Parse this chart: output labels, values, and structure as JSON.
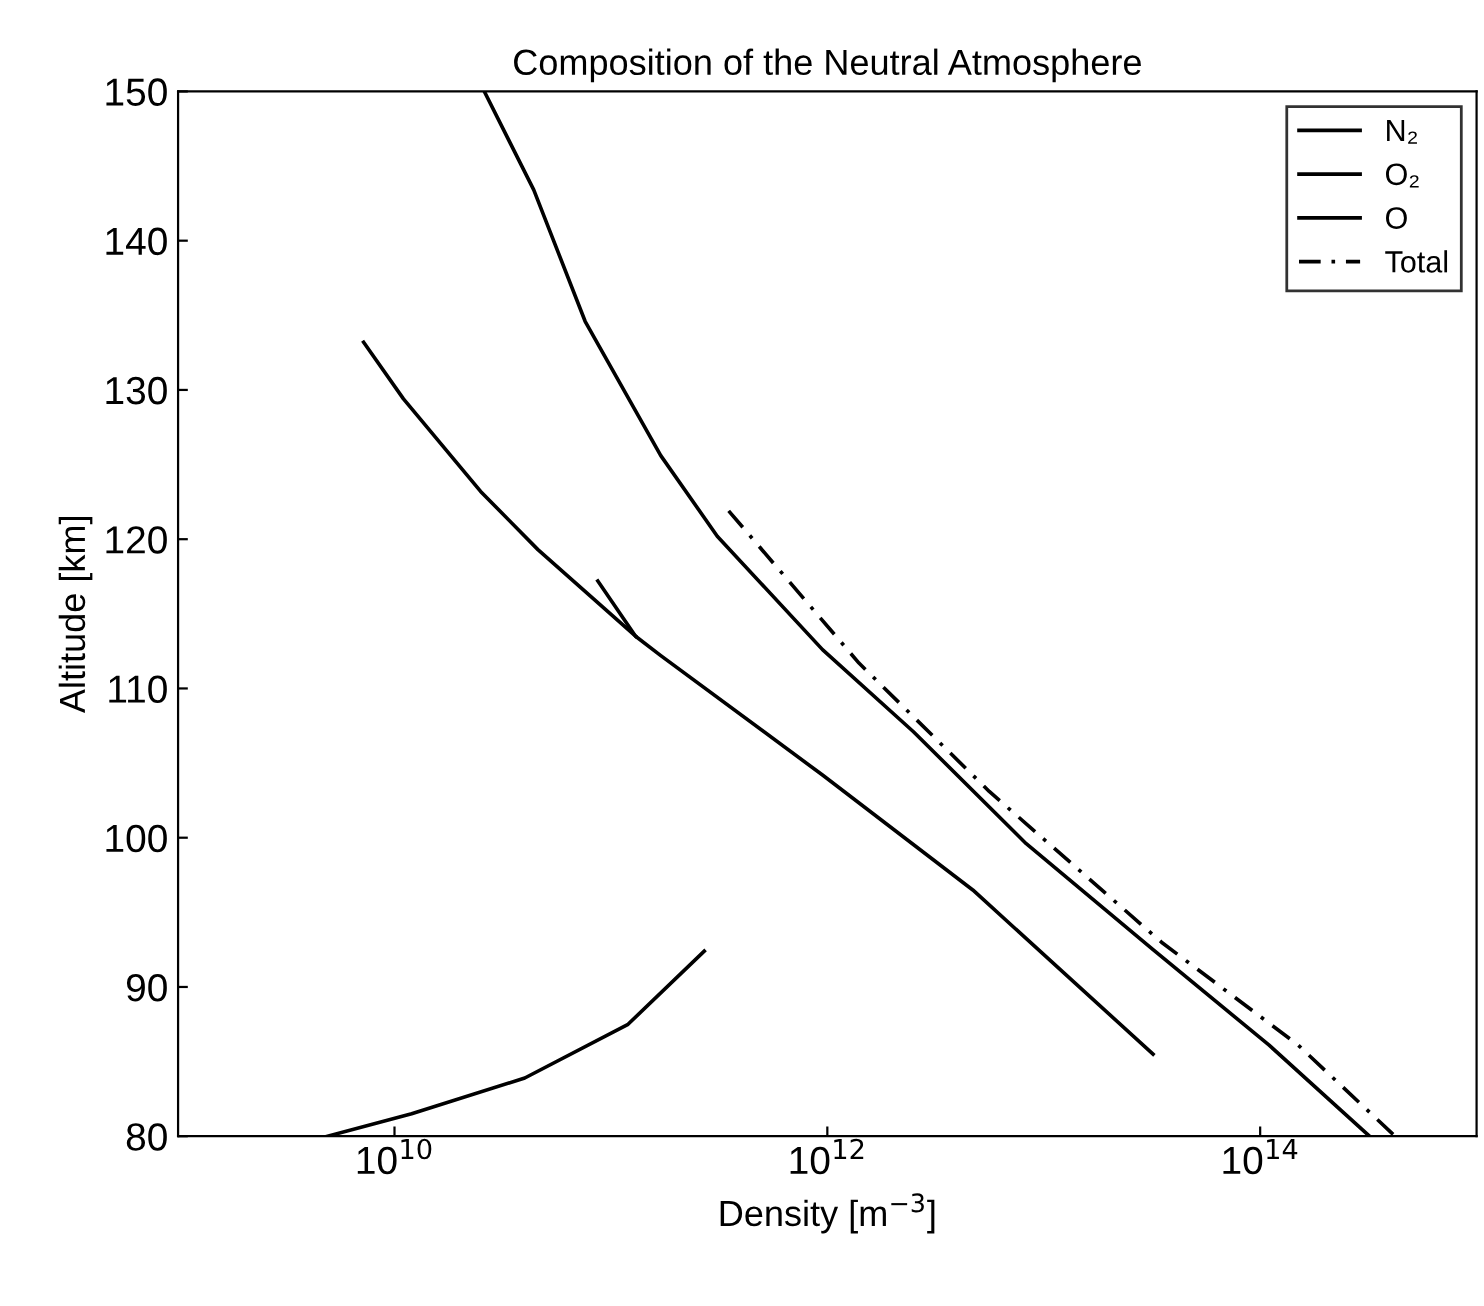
{
  "chart_data": {
    "type": "line",
    "title": "Composition of the Neutral Atmosphere",
    "xlabel": "Density [m$^{−3}$]",
    "ylabel": "Altitude [km]",
    "log": "x",
    "xlim": [
      1000000000.0,
      1000000000000000.0
    ],
    "xticks": [
      {
        "value": 10000000000.0,
        "label": "10$^{10}$"
      },
      {
        "value": 1000000000000.0,
        "label": "10$^{12}$"
      },
      {
        "value": 100000000000000.0,
        "label": "10$^{14}$"
      }
    ],
    "ylim": [
      80,
      150
    ],
    "yticks": [
      80,
      90,
      100,
      110,
      120,
      130,
      140,
      150
    ],
    "grid": false,
    "legend": "top right",
    "marker": "none",
    "series": [
      {
        "name": "N₂",
        "color": "#000000",
        "line_style": "solid",
        "x": [
          26000000000.0,
          44000000000.0,
          76000000000.0,
          170000000000.0,
          310000000000.0,
          950000000000.0,
          2500000000000.0,
          8300000000000.0,
          32000000000000.0,
          110000000000000.0,
          320000000000000.0
        ],
        "values": [
          150,
          143.4,
          134.6,
          125.6,
          120.2,
          112.6,
          107.1,
          99.6,
          92.5,
          86.1,
          80
        ]
      },
      {
        "name": "O₂",
        "color": "#000000",
        "line_style": "solid",
        "x": [
          87000000000.0,
          130000000000.0,
          170000000000.0,
          950000000000.0,
          4700000000000.0,
          32000000000000.0
        ],
        "values": [
          117.2,
          113.5,
          112.2,
          104.2,
          96.5,
          85.5
        ]
      },
      {
        "name": "O",
        "color": "#000000",
        "line_style": "solid",
        "x": [
          7200000000.0,
          11000000000.0,
          25000000000.0,
          46000000000.0,
          130000000000.0,
          null,
          270000000000.0,
          120000000000.0,
          40000000000.0,
          12000000000.0,
          4900000000.0
        ],
        "values": [
          133.2,
          129.4,
          123.2,
          119.3,
          113.5,
          null,
          92.4,
          87.5,
          83.9,
          81.5,
          80
        ]
      },
      {
        "name": "Total",
        "color": "#000000",
        "line_style": "dashed",
        "x": [
          350000000000.0,
          1400000000000.0,
          5600000000000.0,
          35000000000000.0,
          150000000000000.0,
          420000000000000.0
        ],
        "values": [
          121.9,
          111.7,
          103.1,
          93.0,
          86.1,
          80
        ]
      }
    ]
  }
}
